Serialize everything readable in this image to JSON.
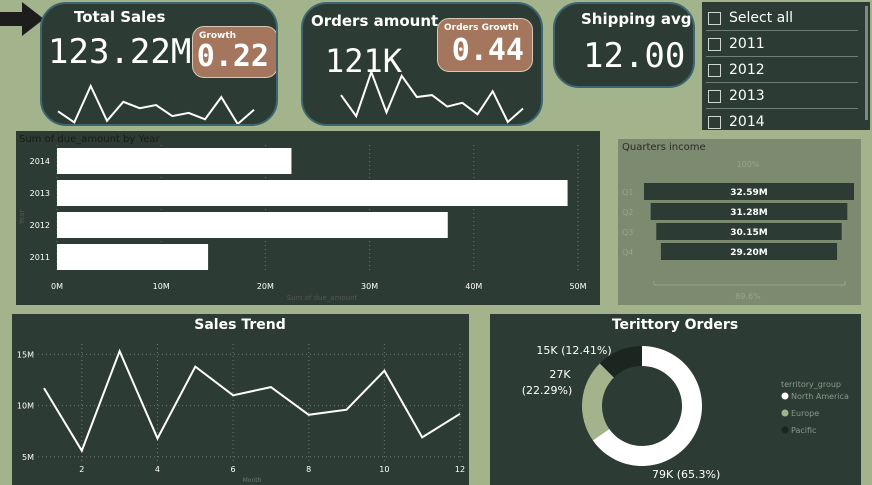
{
  "kpis": {
    "total_sales": {
      "title": "Total Sales",
      "value": "123.22M",
      "badge_label": "Growth",
      "badge_value": "0.22",
      "spark": [
        10,
        3,
        26,
        4,
        16,
        12,
        14,
        7,
        9,
        5,
        19,
        2,
        11
      ]
    },
    "orders_amount": {
      "title": "Orders amount",
      "value": "121K",
      "badge_label": "Orders Growth",
      "badge_value": "0.44",
      "spark": [
        16,
        5,
        28,
        7,
        26,
        15,
        16,
        10,
        12,
        6,
        18,
        2,
        9
      ]
    },
    "shipping_avg": {
      "title": "Shipping avg",
      "value": "12.00"
    }
  },
  "slicer": {
    "items": [
      {
        "label": "Select all",
        "checked": false
      },
      {
        "label": "2011",
        "checked": false
      },
      {
        "label": "2012",
        "checked": false
      },
      {
        "label": "2013",
        "checked": false
      },
      {
        "label": "2014",
        "checked": false
      }
    ]
  },
  "chart_data": [
    {
      "type": "bar",
      "title": "Sum of due_amount by Year",
      "xlabel": "Sum of due_amount",
      "ylabel": "Year",
      "categories": [
        "2014",
        "2013",
        "2012",
        "2011"
      ],
      "values": [
        22.5,
        49,
        37.5,
        14.5
      ],
      "x_ticks": [
        "0M",
        "10M",
        "20M",
        "30M",
        "40M",
        "50M"
      ],
      "xlim": [
        0,
        50
      ],
      "grid": true
    },
    {
      "type": "bar",
      "title": "Quarters income",
      "top_label": "100%",
      "bottom_label": "89.6%",
      "categories": [
        "Q1",
        "Q2",
        "Q3",
        "Q4"
      ],
      "values": [
        32.59,
        31.28,
        30.15,
        29.2
      ],
      "labels": [
        "32.59M",
        "31.28M",
        "30.15M",
        "29.20M"
      ]
    },
    {
      "type": "line",
      "title": "Sales Trend",
      "xlabel": "Month",
      "x": [
        1,
        2,
        3,
        4,
        5,
        6,
        7,
        8,
        9,
        10,
        11,
        12
      ],
      "values": [
        11.7,
        5.6,
        15.3,
        6.8,
        13.8,
        11.0,
        11.8,
        9.1,
        9.6,
        13.4,
        6.9,
        9.2
      ],
      "x_ticks": [
        "2",
        "4",
        "6",
        "8",
        "10",
        "12"
      ],
      "y_ticks": [
        "5M",
        "10M",
        "15M"
      ],
      "ylim": [
        4.5,
        16
      ],
      "grid": true
    },
    {
      "type": "pie",
      "title": "Terittory Orders",
      "legend_title": "territory_group",
      "legend_position": "right",
      "slices": [
        {
          "name": "North America",
          "value": 65.3,
          "label": "79K (65.3%)",
          "color": "#ffffff"
        },
        {
          "name": "Europe",
          "value": 22.29,
          "label": "27K (22.29%)",
          "color": "#a3b38c"
        },
        {
          "name": "Pacific",
          "value": 12.41,
          "label": "15K (12.41%)",
          "color": "#1b2620"
        }
      ]
    }
  ],
  "colors": {
    "background": "#a3b38c",
    "panel": "#2c3b33",
    "badge": "#a3765d",
    "bar": "#ffffff",
    "line": "#ffffff",
    "funnel_panel": "#7c8a6f",
    "funnel_bar": "#2c3b33"
  },
  "icons": {
    "arrow": "right-arrow-icon"
  }
}
